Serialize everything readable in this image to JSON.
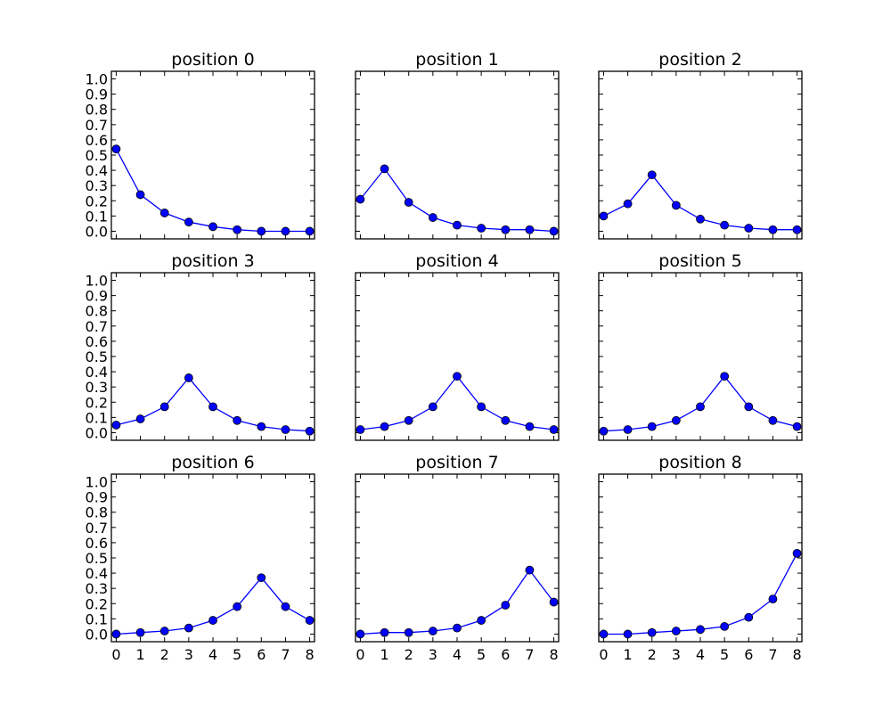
{
  "chart_data": {
    "type": "line",
    "layout": "3x3 grid of subplots",
    "shared_x": true,
    "shared_y": true,
    "x": [
      0,
      1,
      2,
      3,
      4,
      5,
      6,
      7,
      8
    ],
    "x_tick_labels": [
      "0",
      "1",
      "2",
      "3",
      "4",
      "5",
      "6",
      "7",
      "8"
    ],
    "xlim": [
      -0.2,
      8.2
    ],
    "ylim": [
      -0.05,
      1.05
    ],
    "y_ticks": [
      0.0,
      0.1,
      0.2,
      0.3,
      0.4,
      0.5,
      0.6,
      0.7,
      0.8,
      0.9,
      1.0
    ],
    "y_tick_labels": [
      "0.0",
      "0.1",
      "0.2",
      "0.3",
      "0.4",
      "0.5",
      "0.6",
      "0.7",
      "0.8",
      "0.9",
      "1.0"
    ],
    "grid": false,
    "legend": "none",
    "line_color": "#0000ff",
    "marker": "circle",
    "panels": [
      {
        "title": "position 0",
        "values": [
          0.54,
          0.24,
          0.12,
          0.06,
          0.03,
          0.01,
          0.0,
          0.0,
          0.0
        ]
      },
      {
        "title": "position 1",
        "values": [
          0.21,
          0.41,
          0.19,
          0.09,
          0.04,
          0.02,
          0.01,
          0.01,
          0.0
        ]
      },
      {
        "title": "position 2",
        "values": [
          0.1,
          0.18,
          0.37,
          0.17,
          0.08,
          0.04,
          0.02,
          0.01,
          0.01
        ]
      },
      {
        "title": "position 3",
        "values": [
          0.05,
          0.09,
          0.17,
          0.36,
          0.17,
          0.08,
          0.04,
          0.02,
          0.01
        ]
      },
      {
        "title": "position 4",
        "values": [
          0.02,
          0.04,
          0.08,
          0.17,
          0.37,
          0.17,
          0.08,
          0.04,
          0.02
        ]
      },
      {
        "title": "position 5",
        "values": [
          0.01,
          0.02,
          0.04,
          0.08,
          0.17,
          0.37,
          0.17,
          0.08,
          0.04
        ]
      },
      {
        "title": "position 6",
        "values": [
          0.0,
          0.01,
          0.02,
          0.04,
          0.09,
          0.18,
          0.37,
          0.18,
          0.09
        ]
      },
      {
        "title": "position 7",
        "values": [
          0.0,
          0.01,
          0.01,
          0.02,
          0.04,
          0.09,
          0.19,
          0.42,
          0.21
        ]
      },
      {
        "title": "position 8",
        "values": [
          0.0,
          0.0,
          0.01,
          0.02,
          0.03,
          0.05,
          0.11,
          0.23,
          0.53
        ]
      }
    ]
  }
}
